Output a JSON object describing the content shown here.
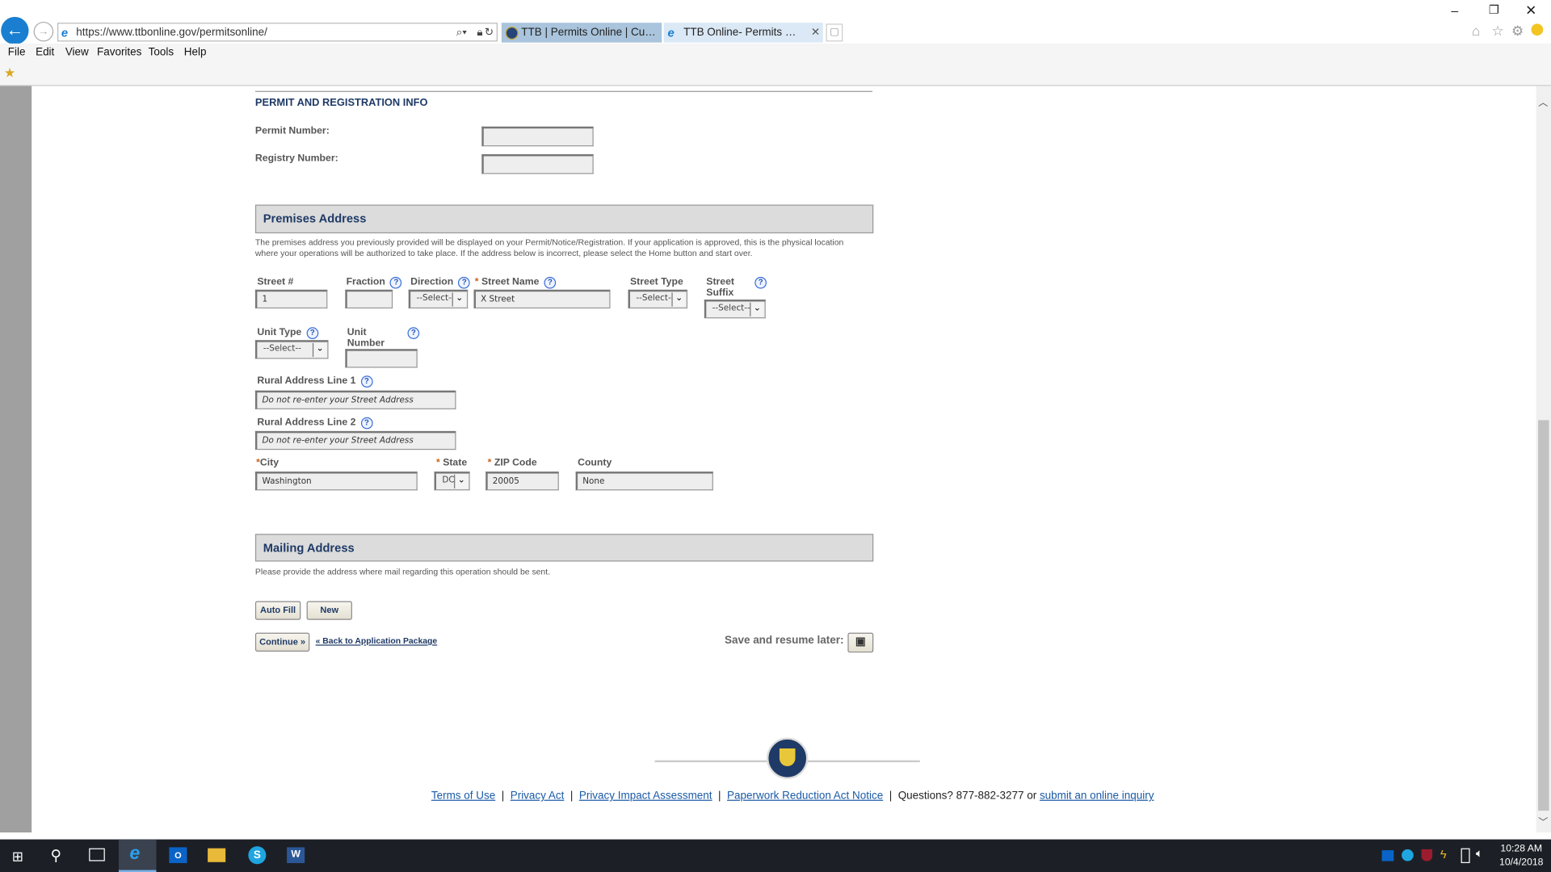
{
  "browser": {
    "url": "https://www.ttbonline.gov/permitsonline/",
    "tabs": [
      {
        "label": "TTB | Permits Online | Custom...",
        "active": false
      },
      {
        "label": "TTB Online- Permits Online...",
        "active": true
      }
    ],
    "menu": [
      "File",
      "Edit",
      "View",
      "Favorites",
      "Tools",
      "Help"
    ]
  },
  "permit_section": {
    "heading": "PERMIT AND REGISTRATION INFO",
    "permit_number_label": "Permit Number:",
    "permit_number_value": "",
    "registry_number_label": "Registry Number:",
    "registry_number_value": ""
  },
  "premises": {
    "header": "Premises Address",
    "description": "The premises address you previously provided will be displayed on your Permit/Notice/Registration. If your application is approved, this is the physical location where your operations will be authorized to take place. If the address below is incorrect, please select the Home button and start over.",
    "street_num_label": "Street #",
    "street_num_value": "1",
    "fraction_label": "Fraction",
    "direction_label": "Direction",
    "direction_value": "--Select--",
    "street_name_label": "Street Name",
    "street_name_value": "X Street",
    "street_type_label": "Street Type",
    "street_type_value": "--Select--",
    "street_suffix_label": "Street Suffix",
    "street_suffix_value": "--Select--",
    "unit_type_label": "Unit Type",
    "unit_type_value": "--Select--",
    "unit_number_label": "Unit Number",
    "rural1_label": "Rural Address Line 1",
    "rural1_placeholder": "Do not re-enter your Street Address",
    "rural2_label": "Rural Address Line 2",
    "rural2_placeholder": "Do not re-enter your Street Address",
    "city_label": "City",
    "city_value": "Washington",
    "state_label": "State",
    "state_value": "DC",
    "zip_label": "ZIP Code",
    "zip_value": "20005",
    "county_label": "County",
    "county_value": "None",
    "required_mark": "*",
    "help_glyph": "?"
  },
  "mailing": {
    "header": "Mailing Address",
    "description": "Please provide the address where mail regarding this operation should be sent.",
    "auto_fill": "Auto Fill",
    "new": "New"
  },
  "nav": {
    "continue": "Continue »",
    "back": "« Back to Application Package",
    "save_resume": "Save and resume later:"
  },
  "footer": {
    "links": [
      "Terms of Use",
      "Privacy Act",
      "Privacy Impact Assessment",
      "Paperwork Reduction Act Notice"
    ],
    "questions": "Questions? 877-882-3277 or",
    "inquiry": "submit an online inquiry",
    "sep": "|"
  },
  "taskbar": {
    "time": "10:28 AM",
    "date": "10/4/2018"
  },
  "colors": {
    "accent": "#1f3a66",
    "link": "#1a5aa6",
    "required": "#c8641e",
    "ie_blue": "#1a7fd0"
  }
}
